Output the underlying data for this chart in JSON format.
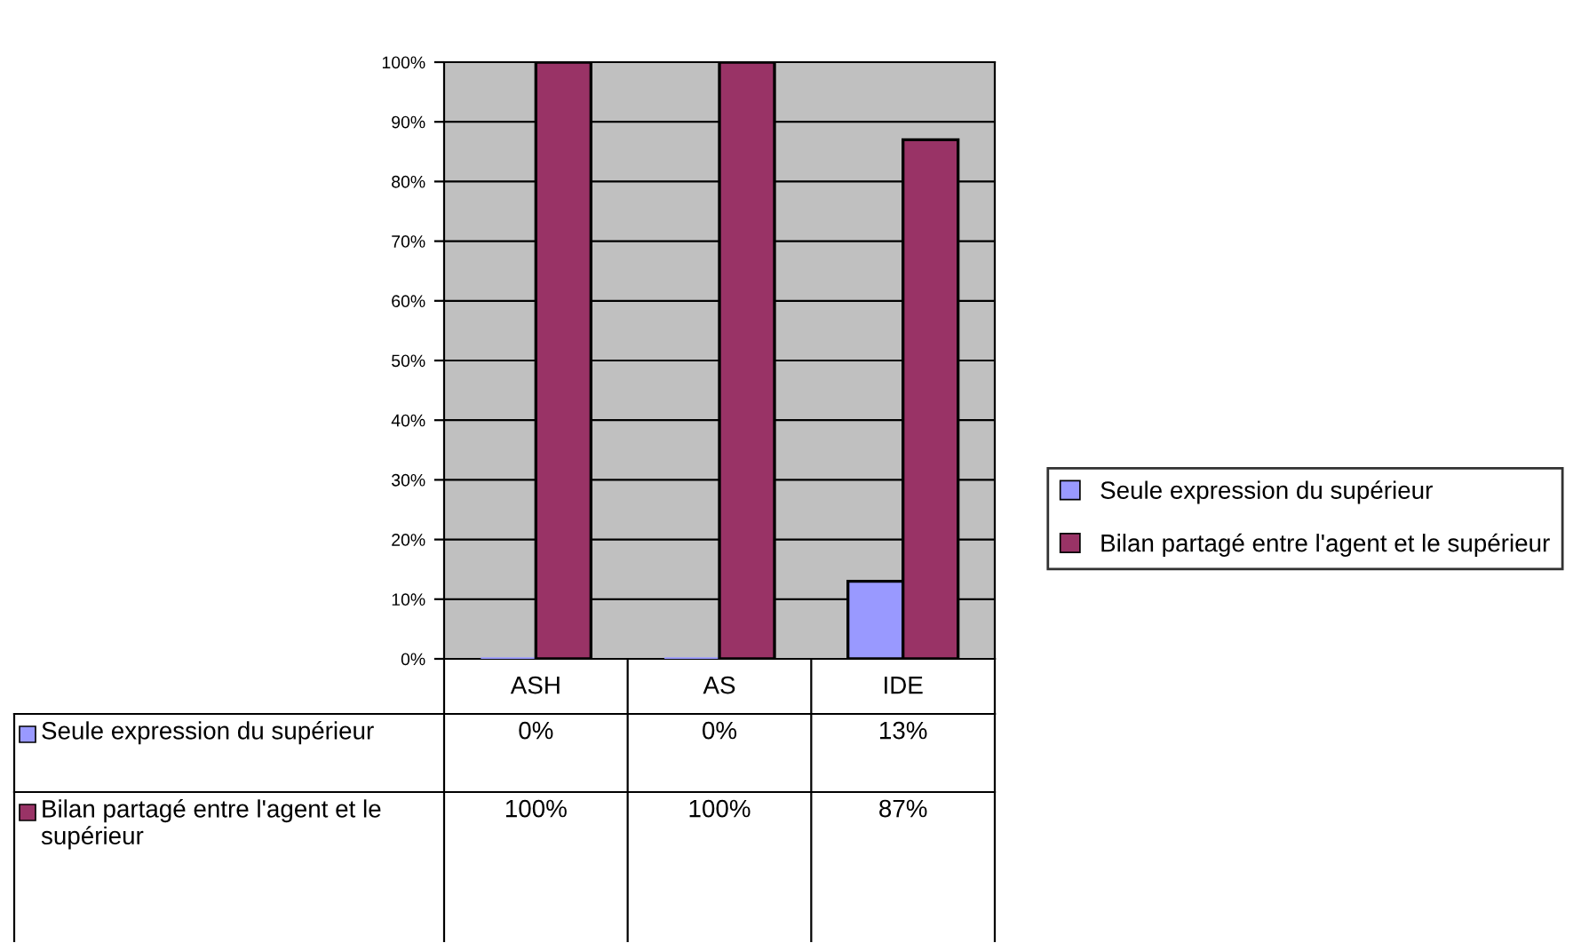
{
  "chart_data": {
    "type": "bar",
    "categories": [
      "ASH",
      "AS",
      "IDE"
    ],
    "series": [
      {
        "name": "Seule expression du supérieur",
        "color": "#9999ff",
        "values": [
          0,
          0,
          13
        ],
        "value_labels": [
          "0%",
          "0%",
          "13%"
        ]
      },
      {
        "name": "Bilan partagé entre l'agent et le supérieur",
        "color": "#993366",
        "values": [
          100,
          100,
          87
        ],
        "value_labels": [
          "100%",
          "100%",
          "87%"
        ]
      }
    ],
    "ylim": [
      0,
      100
    ],
    "yticks": [
      {
        "value": 0,
        "label": "0%"
      },
      {
        "value": 10,
        "label": "10%"
      },
      {
        "value": 20,
        "label": "20%"
      },
      {
        "value": 30,
        "label": "30%"
      },
      {
        "value": 40,
        "label": "40%"
      },
      {
        "value": 50,
        "label": "50%"
      },
      {
        "value": 60,
        "label": "60%"
      },
      {
        "value": 70,
        "label": "70%"
      },
      {
        "value": 80,
        "label": "80%"
      },
      {
        "value": 90,
        "label": "90%"
      },
      {
        "value": 100,
        "label": "100%"
      }
    ],
    "grid": "y",
    "legend": "right"
  }
}
